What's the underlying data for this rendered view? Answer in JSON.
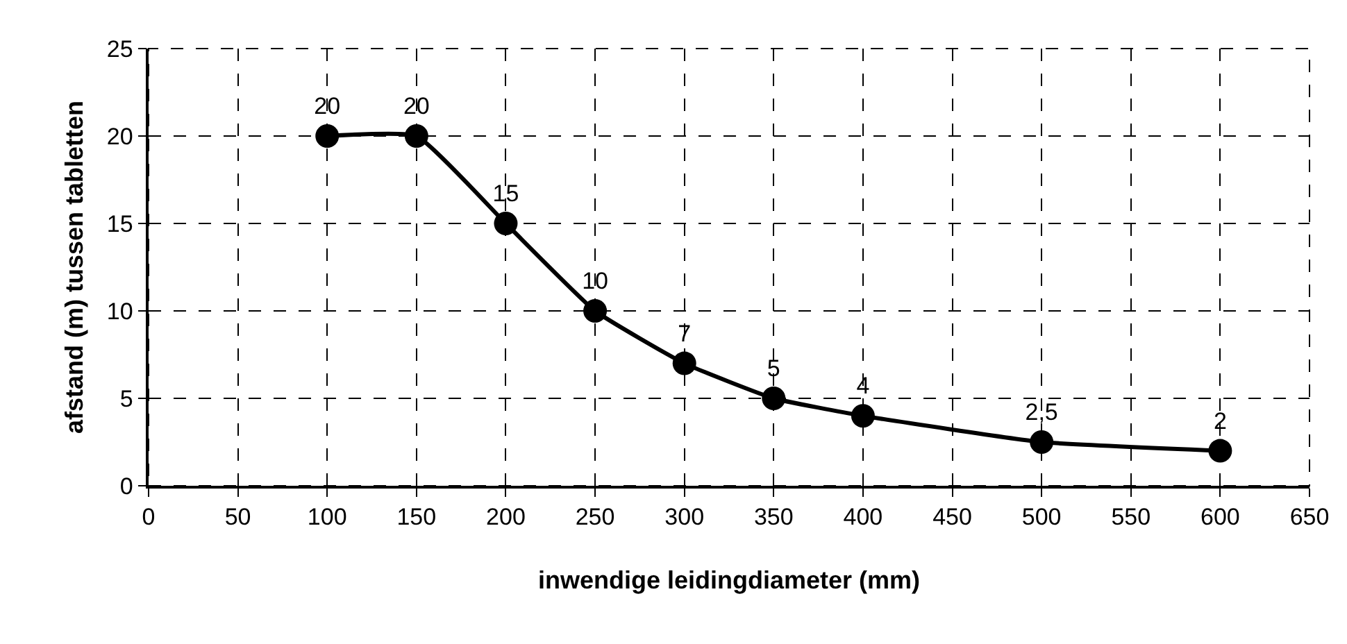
{
  "chart_data": {
    "type": "line",
    "xlabel": "inwendige leidingdiameter (mm)",
    "ylabel": "afstand (m) tussen tabletten",
    "x": [
      100,
      150,
      200,
      250,
      300,
      350,
      400,
      500,
      600
    ],
    "series": [
      {
        "color": "#000000",
        "values": [
          20,
          20,
          15,
          10,
          7,
          5,
          4,
          2.5,
          2
        ],
        "value_labels": [
          "20",
          "20",
          "15",
          "10",
          "7",
          "5",
          "4",
          "2,5",
          "2"
        ]
      }
    ],
    "xlim": [
      0,
      650
    ],
    "xticks": [
      0,
      50,
      100,
      150,
      200,
      250,
      300,
      350,
      400,
      450,
      500,
      550,
      600,
      650
    ],
    "ylim": [
      0,
      25
    ],
    "yticks": [
      0,
      5,
      10,
      15,
      20,
      25
    ],
    "grid": true,
    "marker": "circle",
    "line_style": "solid"
  }
}
